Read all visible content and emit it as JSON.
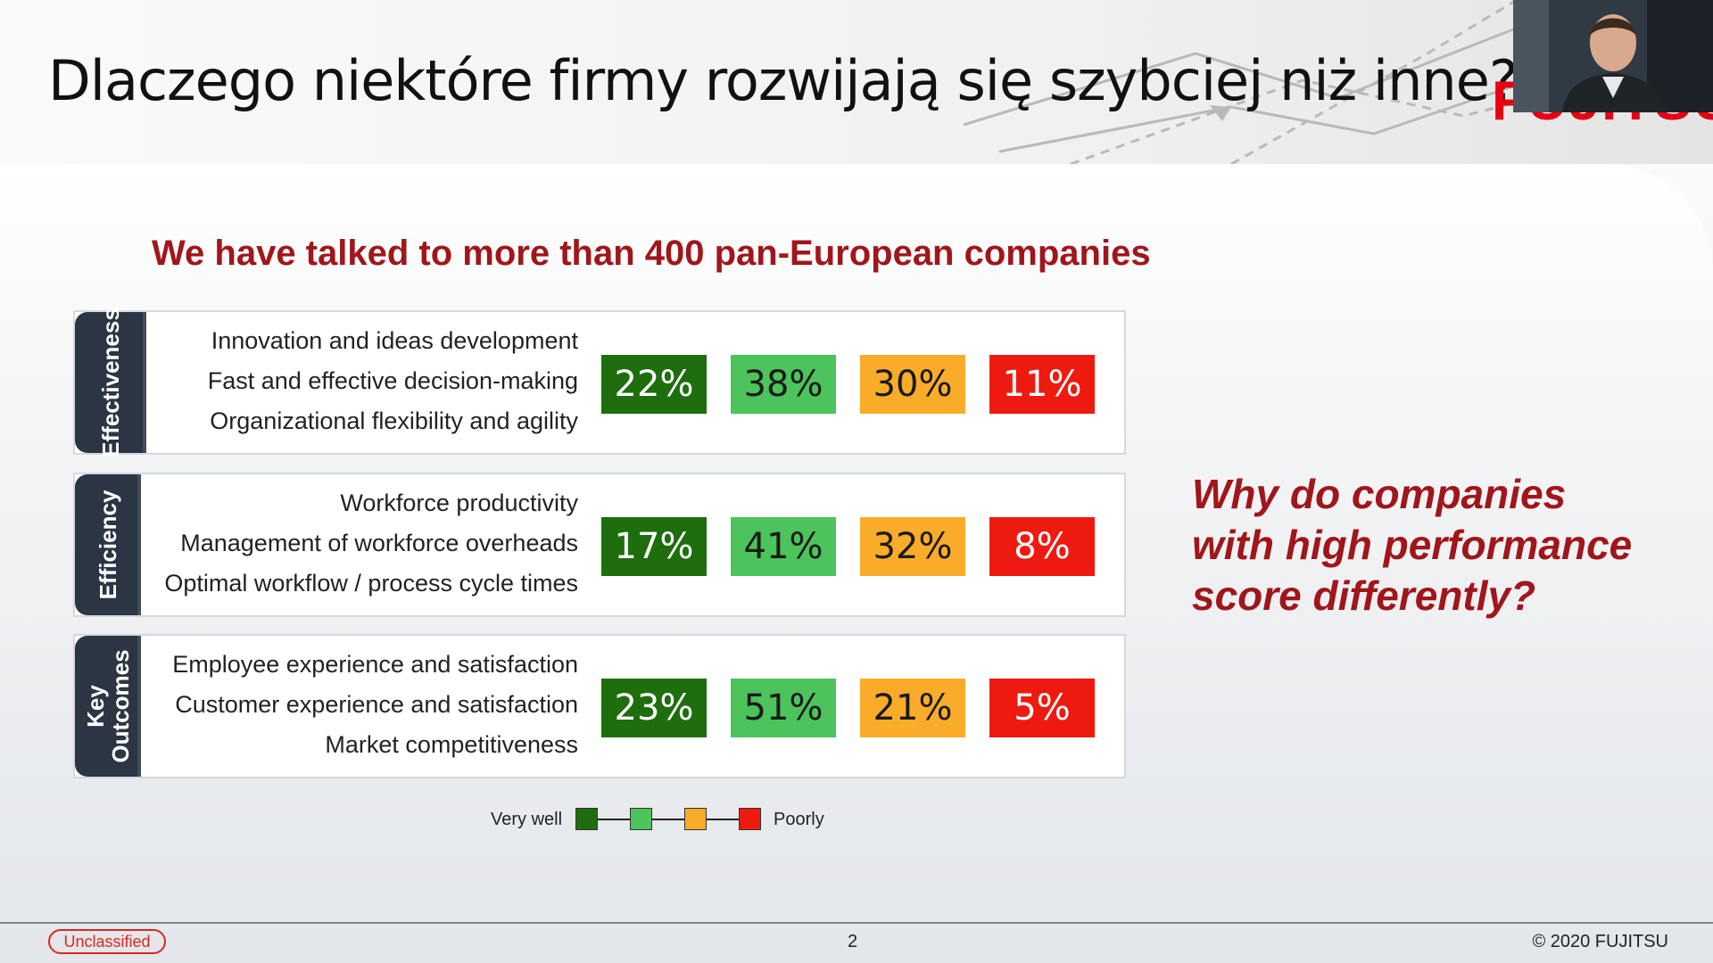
{
  "header": {
    "title": "Dlaczego niektóre firmy rozwijają się szybciej niż inne?",
    "logo_text": "FUJITSU"
  },
  "webcam": {
    "description": "presenter video feed"
  },
  "subtitle": "We have talked to more than 400 pan-European companies",
  "rows": [
    {
      "category": "Effectiveness",
      "items": [
        "Innovation and ideas development",
        "Fast and effective decision-making",
        "Organizational flexibility and agility"
      ],
      "values": [
        "22%",
        "38%",
        "30%",
        "11%"
      ]
    },
    {
      "category": "Efficiency",
      "items": [
        "Workforce productivity",
        "Management of workforce overheads",
        "Optimal workflow / process cycle times"
      ],
      "values": [
        "17%",
        "41%",
        "32%",
        "8%"
      ]
    },
    {
      "category_line1": "Key",
      "category_line2": "Outcomes",
      "items": [
        "Employee experience and satisfaction",
        "Customer experience and satisfaction",
        "Market competitiveness"
      ],
      "values": [
        "23%",
        "51%",
        "21%",
        "5%"
      ]
    }
  ],
  "legend": {
    "left_label": "Very well",
    "right_label": "Poorly"
  },
  "colors": {
    "very_well": "#1e6e0e",
    "well": "#4cc35b",
    "somewhat": "#f9ac2a",
    "poorly": "#ee1a10",
    "accent": "#a0161b"
  },
  "question": "Why do companies with high performance score differently?",
  "footer": {
    "classification": "Unclassified",
    "page_number": "2",
    "copyright": "© 2020 FUJITSU"
  }
}
